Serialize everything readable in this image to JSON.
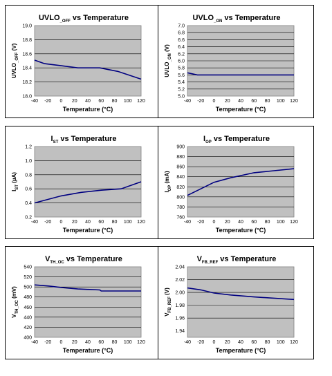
{
  "chart_data": [
    {
      "type": "line",
      "title": "UVLO",
      "title_sub": "_OFF",
      "title_rest": " vs Temperature",
      "ylabel": "UVLO",
      "ylabel_sub": "_OFF",
      "ylabel_unit": " (V)",
      "xlabel": "Temperature (°C)",
      "xlim": [
        -40,
        120
      ],
      "ylim": [
        18.0,
        19.0
      ],
      "xticks": [
        -40,
        -20,
        0,
        20,
        40,
        60,
        80,
        100,
        120
      ],
      "yticks": [
        "18.0",
        "18.2",
        "18.4",
        "18.6",
        "18.8",
        "19.0"
      ],
      "series": [
        {
          "x": [
            -40,
            -25,
            0,
            25,
            50,
            58,
            85,
            120
          ],
          "y": [
            18.51,
            18.46,
            18.43,
            18.4,
            18.4,
            18.4,
            18.35,
            18.24
          ]
        }
      ]
    },
    {
      "type": "line",
      "title": "UVLO",
      "title_sub": "_ON",
      "title_rest": " vs Temperature",
      "ylabel": "UVLO",
      "ylabel_sub": "_ON",
      "ylabel_unit": " (V)",
      "xlabel": "Temperature (°C)",
      "xlim": [
        -40,
        120
      ],
      "ylim": [
        5.0,
        7.0
      ],
      "xticks": [
        -40,
        -20,
        0,
        20,
        40,
        60,
        80,
        100,
        120
      ],
      "yticks": [
        "5.0",
        "5.2",
        "5.4",
        "5.6",
        "5.8",
        "6.0",
        "6.2",
        "6.4",
        "6.6",
        "6.8",
        "7.0"
      ],
      "series": [
        {
          "x": [
            -40,
            -25,
            0,
            25,
            60,
            85,
            120
          ],
          "y": [
            5.66,
            5.6,
            5.6,
            5.6,
            5.6,
            5.6,
            5.6
          ]
        }
      ]
    },
    {
      "type": "line",
      "title": "I",
      "title_sub": "ST",
      "title_rest": " vs Temperature",
      "ylabel": "I",
      "ylabel_sub": "ST",
      "ylabel_unit": " (µA)",
      "xlabel": "Temperature (°C)",
      "xlim": [
        -40,
        120
      ],
      "ylim": [
        0.2,
        1.2
      ],
      "xticks": [
        -40,
        -20,
        0,
        20,
        40,
        60,
        80,
        100,
        120
      ],
      "yticks": [
        "0.2",
        "0.4",
        "0.6",
        "0.8",
        "1.0",
        "1.2"
      ],
      "series": [
        {
          "x": [
            -40,
            0,
            30,
            60,
            90,
            120
          ],
          "y": [
            0.4,
            0.5,
            0.55,
            0.58,
            0.6,
            0.7
          ]
        }
      ]
    },
    {
      "type": "line",
      "title": "I",
      "title_sub": "OP",
      "title_rest": " vs Temperature",
      "ylabel": "I",
      "ylabel_sub": "OP",
      "ylabel_unit": " (mA)",
      "xlabel": "Temperature (°C)",
      "xlim": [
        -40,
        120
      ],
      "ylim": [
        760,
        900
      ],
      "xticks": [
        -40,
        -20,
        0,
        20,
        40,
        60,
        80,
        100,
        120
      ],
      "yticks": [
        "760",
        "780",
        "800",
        "820",
        "840",
        "860",
        "880",
        "900"
      ],
      "series": [
        {
          "x": [
            -40,
            -20,
            0,
            25,
            60,
            90,
            120
          ],
          "y": [
            803,
            816,
            829,
            838,
            848,
            852,
            856
          ]
        }
      ]
    },
    {
      "type": "line",
      "title": "V",
      "title_sub": "TH_OC",
      "title_rest": " vs Temperature",
      "ylabel": "V",
      "ylabel_sub": "TH_OC",
      "ylabel_unit": " (mV)",
      "xlabel": "Temperature (°C)",
      "xlim": [
        -40,
        120
      ],
      "ylim": [
        400,
        540
      ],
      "xticks": [
        -40,
        -20,
        0,
        20,
        40,
        60,
        80,
        100,
        120
      ],
      "yticks": [
        "400",
        "420",
        "440",
        "460",
        "480",
        "500",
        "520",
        "540"
      ],
      "series": [
        {
          "x": [
            -40,
            -20,
            0,
            25,
            58,
            60,
            90,
            120
          ],
          "y": [
            504,
            502,
            499,
            496,
            494,
            492,
            492,
            492
          ]
        }
      ]
    },
    {
      "type": "line",
      "title": "V",
      "title_sub": "FB_REF",
      "title_rest": " vs Temperature",
      "ylabel": "V",
      "ylabel_sub": "FB_REF",
      "ylabel_unit": " (V)",
      "xlabel": "Temperature (°C)",
      "xlim": [
        -40,
        120
      ],
      "ylim": [
        1.93,
        2.04
      ],
      "xticks": [
        -40,
        -20,
        0,
        20,
        40,
        60,
        80,
        100,
        120
      ],
      "yticks": [
        "1.94",
        "1.96",
        "1.98",
        "2.00",
        "2.02",
        "2.04"
      ],
      "series": [
        {
          "x": [
            -40,
            -20,
            0,
            25,
            60,
            90,
            120
          ],
          "y": [
            2.007,
            2.004,
            1.999,
            1.996,
            1.993,
            1.991,
            1.989
          ]
        }
      ]
    }
  ],
  "style": {
    "plot_bg": "#c0c0c0",
    "line_color": "#000080",
    "grid_color": "#000000"
  }
}
